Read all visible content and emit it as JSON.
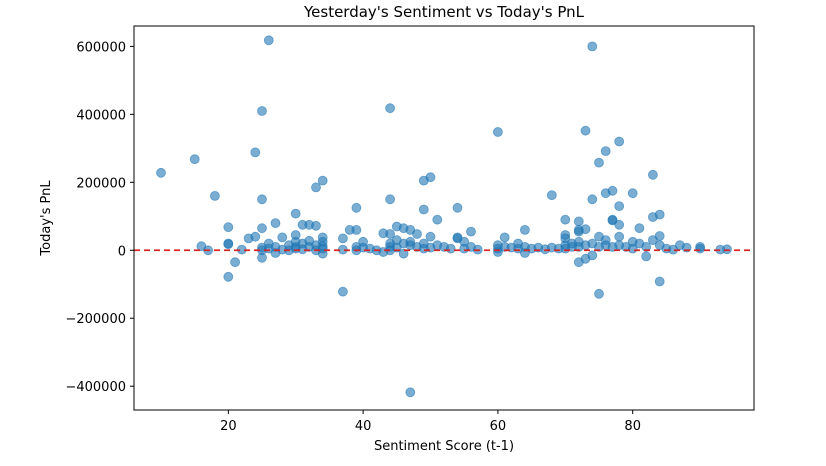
{
  "chart_data": {
    "type": "scatter",
    "title": "Yesterday's Sentiment vs Today's PnL",
    "xlabel": "Sentiment Score (t-1)",
    "ylabel": "Today's PnL",
    "xlim": [
      6,
      98
    ],
    "ylim": [
      -470000,
      660000
    ],
    "xticks": [
      20,
      40,
      60,
      80
    ],
    "yticks": [
      -400000,
      -200000,
      0,
      200000,
      400000,
      600000
    ],
    "xtick_labels": [
      "20",
      "40",
      "60",
      "80"
    ],
    "ytick_labels": [
      "−400000",
      "−200000",
      "0",
      "200000",
      "400000",
      "600000"
    ],
    "grid": false,
    "point_color": "#1f77b4",
    "reference_line": {
      "y": 0,
      "color": "#d62728",
      "style": "dashed"
    },
    "points": [
      [
        10,
        228000
      ],
      [
        15,
        268000
      ],
      [
        16,
        12000
      ],
      [
        17,
        0
      ],
      [
        18,
        160000
      ],
      [
        20,
        68000
      ],
      [
        20,
        20000
      ],
      [
        20,
        18000
      ],
      [
        20,
        -78000
      ],
      [
        21,
        -35000
      ],
      [
        22,
        2000
      ],
      [
        23,
        35000
      ],
      [
        24,
        40000
      ],
      [
        24,
        288000
      ],
      [
        25,
        410000
      ],
      [
        25,
        150000
      ],
      [
        25,
        65000
      ],
      [
        25,
        8000
      ],
      [
        25,
        0
      ],
      [
        25,
        -22000
      ],
      [
        26,
        618000
      ],
      [
        26,
        20000
      ],
      [
        26,
        5000
      ],
      [
        27,
        80000
      ],
      [
        27,
        10000
      ],
      [
        27,
        -8000
      ],
      [
        28,
        38000
      ],
      [
        28,
        2000
      ],
      [
        29,
        15000
      ],
      [
        29,
        0
      ],
      [
        30,
        108000
      ],
      [
        30,
        45000
      ],
      [
        30,
        25000
      ],
      [
        30,
        10000
      ],
      [
        30,
        5000
      ],
      [
        31,
        75000
      ],
      [
        31,
        20000
      ],
      [
        31,
        3000
      ],
      [
        32,
        75000
      ],
      [
        32,
        28000
      ],
      [
        32,
        10000
      ],
      [
        33,
        72000
      ],
      [
        33,
        185000
      ],
      [
        33,
        15000
      ],
      [
        33,
        0
      ],
      [
        34,
        205000
      ],
      [
        34,
        38000
      ],
      [
        34,
        25000
      ],
      [
        34,
        12000
      ],
      [
        34,
        5000
      ],
      [
        34,
        -10000
      ],
      [
        37,
        -122000
      ],
      [
        37,
        35000
      ],
      [
        37,
        2000
      ],
      [
        38,
        60000
      ],
      [
        39,
        60000
      ],
      [
        39,
        125000
      ],
      [
        39,
        10000
      ],
      [
        39,
        0
      ],
      [
        40,
        25000
      ],
      [
        40,
        8000
      ],
      [
        41,
        5000
      ],
      [
        42,
        0
      ],
      [
        43,
        50000
      ],
      [
        43,
        -5000
      ],
      [
        44,
        418000
      ],
      [
        44,
        150000
      ],
      [
        44,
        48000
      ],
      [
        44,
        20000
      ],
      [
        44,
        10000
      ],
      [
        44,
        0
      ],
      [
        45,
        70000
      ],
      [
        45,
        30000
      ],
      [
        45,
        8000
      ],
      [
        46,
        65000
      ],
      [
        46,
        20000
      ],
      [
        46,
        -10000
      ],
      [
        47,
        60000
      ],
      [
        47,
        25000
      ],
      [
        47,
        15000
      ],
      [
        47,
        -418000
      ],
      [
        48,
        48000
      ],
      [
        48,
        10000
      ],
      [
        49,
        205000
      ],
      [
        49,
        120000
      ],
      [
        49,
        20000
      ],
      [
        49,
        5000
      ],
      [
        50,
        215000
      ],
      [
        50,
        40000
      ],
      [
        50,
        8000
      ],
      [
        51,
        90000
      ],
      [
        51,
        15000
      ],
      [
        52,
        10000
      ],
      [
        53,
        5000
      ],
      [
        54,
        125000
      ],
      [
        54,
        38000
      ],
      [
        54,
        35000
      ],
      [
        55,
        25000
      ],
      [
        55,
        5000
      ],
      [
        56,
        55000
      ],
      [
        56,
        10000
      ],
      [
        57,
        2000
      ],
      [
        60,
        348000
      ],
      [
        60,
        15000
      ],
      [
        60,
        5000
      ],
      [
        60,
        -5000
      ],
      [
        61,
        38000
      ],
      [
        61,
        10000
      ],
      [
        62,
        8000
      ],
      [
        63,
        20000
      ],
      [
        63,
        5000
      ],
      [
        64,
        60000
      ],
      [
        64,
        10000
      ],
      [
        64,
        -8000
      ],
      [
        65,
        5000
      ],
      [
        66,
        8000
      ],
      [
        67,
        3000
      ],
      [
        68,
        162000
      ],
      [
        68,
        8000
      ],
      [
        69,
        5000
      ],
      [
        70,
        90000
      ],
      [
        70,
        45000
      ],
      [
        70,
        35000
      ],
      [
        70,
        15000
      ],
      [
        70,
        5000
      ],
      [
        71,
        20000
      ],
      [
        71,
        10000
      ],
      [
        72,
        85000
      ],
      [
        72,
        60000
      ],
      [
        72,
        55000
      ],
      [
        72,
        25000
      ],
      [
        72,
        10000
      ],
      [
        72,
        -35000
      ],
      [
        73,
        352000
      ],
      [
        73,
        62000
      ],
      [
        73,
        15000
      ],
      [
        73,
        -25000
      ],
      [
        74,
        600000
      ],
      [
        74,
        150000
      ],
      [
        74,
        20000
      ],
      [
        74,
        -15000
      ],
      [
        75,
        258000
      ],
      [
        75,
        40000
      ],
      [
        75,
        10000
      ],
      [
        75,
        -128000
      ],
      [
        76,
        292000
      ],
      [
        76,
        168000
      ],
      [
        76,
        30000
      ],
      [
        76,
        15000
      ],
      [
        77,
        175000
      ],
      [
        77,
        90000
      ],
      [
        77,
        88000
      ],
      [
        77,
        10000
      ],
      [
        78,
        320000
      ],
      [
        78,
        130000
      ],
      [
        78,
        75000
      ],
      [
        78,
        40000
      ],
      [
        78,
        15000
      ],
      [
        79,
        10000
      ],
      [
        80,
        168000
      ],
      [
        80,
        25000
      ],
      [
        80,
        5000
      ],
      [
        81,
        65000
      ],
      [
        81,
        20000
      ],
      [
        82,
        -18000
      ],
      [
        82,
        10000
      ],
      [
        83,
        222000
      ],
      [
        83,
        98000
      ],
      [
        83,
        30000
      ],
      [
        84,
        105000
      ],
      [
        84,
        42000
      ],
      [
        84,
        15000
      ],
      [
        84,
        -92000
      ],
      [
        85,
        5000
      ],
      [
        86,
        2000
      ],
      [
        87,
        15000
      ],
      [
        88,
        8000
      ],
      [
        90,
        10000
      ],
      [
        90,
        5000
      ],
      [
        93,
        2000
      ],
      [
        94,
        3000
      ]
    ]
  }
}
